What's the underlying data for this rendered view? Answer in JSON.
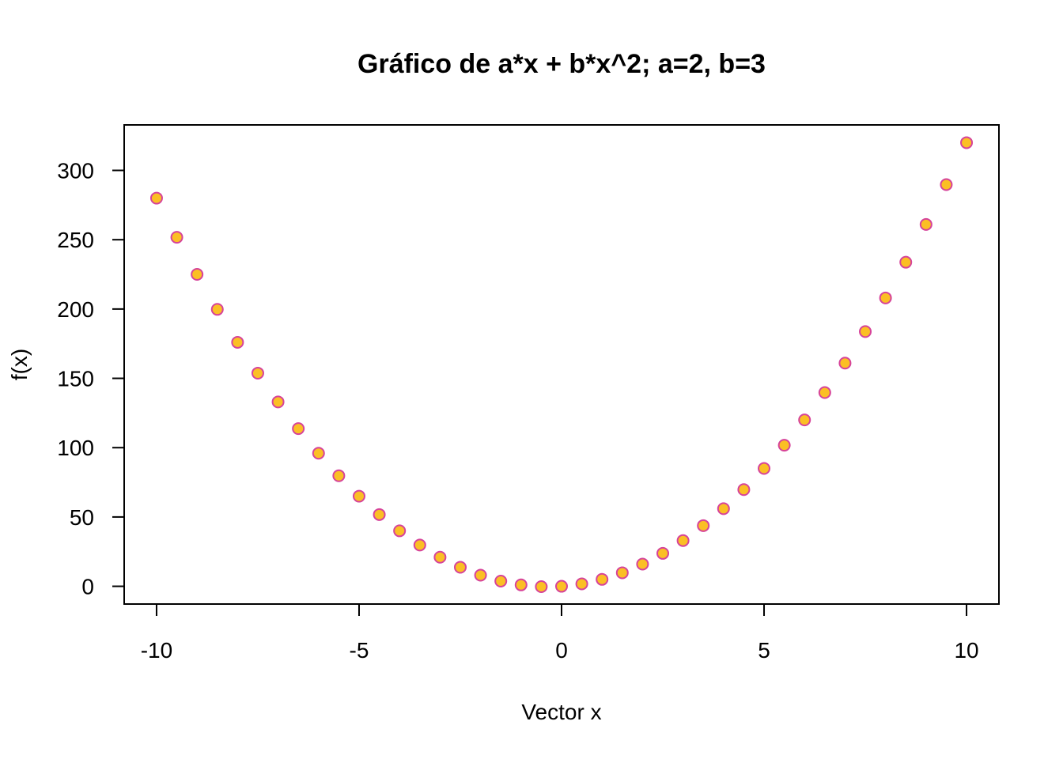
{
  "chart_data": {
    "type": "scatter",
    "title": "Gráfico de a*x + b*x^2; a=2, b=3",
    "xlabel": "Vector x",
    "ylabel": "f(x)",
    "xlim": [
      -10.8,
      10.8
    ],
    "ylim": [
      -12.8,
      332.8
    ],
    "x_ticks": [
      -10,
      -5,
      0,
      5,
      10
    ],
    "x_tick_labels": [
      "-10",
      "-5",
      "0",
      "5",
      "10"
    ],
    "y_ticks": [
      0,
      50,
      100,
      150,
      200,
      250,
      300
    ],
    "y_tick_labels": [
      "0",
      "50",
      "100",
      "150",
      "200",
      "250",
      "300"
    ],
    "grid": false,
    "legend": "none",
    "marker_fill": "#FBBF24",
    "marker_stroke": "#D6439A",
    "series": [
      {
        "x": [
          -10,
          -9.5,
          -9,
          -8.5,
          -8,
          -7.5,
          -7,
          -6.5,
          -6,
          -5.5,
          -5,
          -4.5,
          -4,
          -3.5,
          -3,
          -2.5,
          -2,
          -1.5,
          -1,
          -0.5,
          0,
          0.5,
          1,
          1.5,
          2,
          2.5,
          3,
          3.5,
          4,
          4.5,
          5,
          5.5,
          6,
          6.5,
          7,
          7.5,
          8,
          8.5,
          9,
          9.5,
          10
        ],
        "y": [
          280,
          251.75,
          225,
          199.75,
          176,
          153.75,
          133,
          113.75,
          96,
          79.75,
          65,
          51.75,
          40,
          29.75,
          21,
          13.75,
          8,
          3.75,
          1,
          -0.25,
          0,
          1.75,
          5,
          9.75,
          16,
          23.75,
          33,
          43.75,
          56,
          69.75,
          85,
          101.75,
          120,
          139.75,
          161,
          183.75,
          208,
          233.75,
          261,
          289.75,
          320
        ]
      }
    ]
  }
}
